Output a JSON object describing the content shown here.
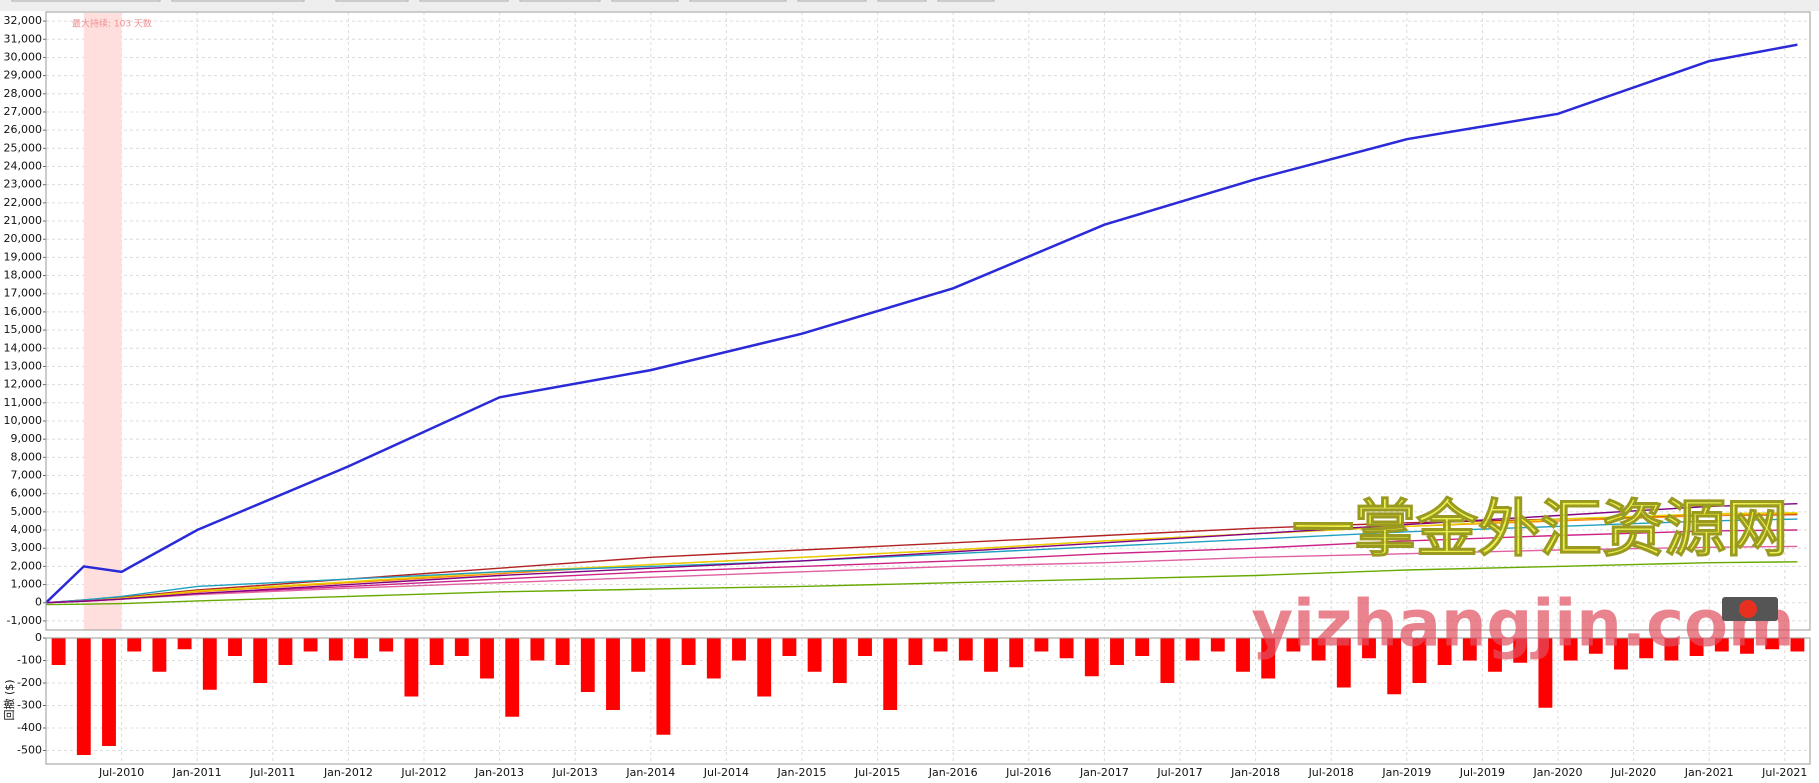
{
  "chart_data": [
    {
      "type": "line",
      "annotation": "最大持续: 103 天数",
      "shade": {
        "x": [
          "2010-04",
          "2010-07"
        ],
        "color": "#ffdede"
      },
      "x": [
        "2010-01",
        "2010-04",
        "2010-07",
        "2011-01",
        "2012-01",
        "2013-01",
        "2014-01",
        "2015-01",
        "2016-01",
        "2017-01",
        "2018-01",
        "2019-01",
        "2020-01",
        "2021-01",
        "2021-08"
      ],
      "series": [
        {
          "color": "#b22222",
          "values": [
            0,
            150,
            300,
            700,
            1300,
            1900,
            2500,
            2900,
            3300,
            3700,
            4100,
            4400,
            4600,
            4800,
            4850
          ]
        },
        {
          "color": "#ff8c00",
          "values": [
            0,
            100,
            250,
            600,
            1100,
            1600,
            2100,
            2500,
            2900,
            3400,
            3800,
            4200,
            4500,
            4800,
            4900
          ]
        },
        {
          "color": "#e8d000",
          "values": [
            0,
            100,
            250,
            650,
            1150,
            1700,
            2100,
            2500,
            2900,
            3400,
            3800,
            4200,
            4600,
            4900,
            4950
          ]
        },
        {
          "color": "#20a0c0",
          "values": [
            0,
            150,
            350,
            900,
            1300,
            1700,
            2000,
            2300,
            2700,
            3100,
            3500,
            3900,
            4200,
            4500,
            4600
          ]
        },
        {
          "color": "#cc2288",
          "values": [
            0,
            100,
            200,
            500,
            900,
            1300,
            1700,
            2000,
            2300,
            2700,
            3000,
            3400,
            3700,
            3950,
            4000
          ]
        },
        {
          "color": "#e060a0",
          "values": [
            0,
            80,
            200,
            450,
            800,
            1100,
            1400,
            1700,
            2000,
            2200,
            2500,
            2700,
            2900,
            3050,
            3100
          ]
        },
        {
          "color": "#800080",
          "values": [
            0,
            80,
            200,
            500,
            1000,
            1500,
            1900,
            2300,
            2800,
            3300,
            3800,
            4300,
            4800,
            5300,
            5450
          ]
        },
        {
          "color": "#66aa00",
          "values": [
            -100,
            -80,
            -50,
            100,
            350,
            600,
            750,
            900,
            1100,
            1300,
            1500,
            1800,
            2000,
            2200,
            2250
          ]
        },
        {
          "color": "#2a2ad8",
          "values": [
            0,
            2000,
            1700,
            4000,
            7500,
            11300,
            12800,
            14800,
            17300,
            20800,
            23300,
            25500,
            26900,
            29800,
            30700
          ]
        }
      ],
      "xlim": [
        "2010-01",
        "2021-09"
      ],
      "ylim": [
        -1500,
        32500
      ],
      "yticks": [
        {
          "value": -1000,
          "label": "-1,000"
        },
        0,
        {
          "value": 1000,
          "label": "1,000"
        },
        {
          "value": 2000,
          "label": "2,000"
        },
        {
          "value": 3000,
          "label": "3,000"
        },
        {
          "value": 4000,
          "label": "4,000"
        },
        {
          "value": 5000,
          "label": "5,000"
        },
        {
          "value": 6000,
          "label": "6,000"
        },
        {
          "value": 7000,
          "label": "7,000"
        },
        {
          "value": 8000,
          "label": "8,000"
        },
        {
          "value": 9000,
          "label": "9,000"
        },
        {
          "value": 10000,
          "label": "10,000"
        },
        {
          "value": 11000,
          "label": "11,000"
        },
        {
          "value": 12000,
          "label": "12,000"
        },
        {
          "value": 13000,
          "label": "13,000"
        },
        {
          "value": 14000,
          "label": "14,000"
        },
        {
          "value": 15000,
          "label": "15,000"
        },
        {
          "value": 16000,
          "label": "16,000"
        },
        {
          "value": 17000,
          "label": "17,000"
        },
        {
          "value": 18000,
          "label": "18,000"
        },
        {
          "value": 19000,
          "label": "19,000"
        },
        {
          "value": 20000,
          "label": "20,000"
        },
        {
          "value": 21000,
          "label": "21,000"
        },
        {
          "value": 22000,
          "label": "22,000"
        },
        {
          "value": 23000,
          "label": "23,000"
        },
        {
          "value": 24000,
          "label": "24,000"
        },
        {
          "value": 25000,
          "label": "25,000"
        },
        {
          "value": 26000,
          "label": "26,000"
        },
        {
          "value": 27000,
          "label": "27,000"
        },
        {
          "value": 28000,
          "label": "28,000"
        },
        {
          "value": 29000,
          "label": "29,000"
        },
        {
          "value": 30000,
          "label": "30,000"
        },
        {
          "value": 31000,
          "label": "31,000"
        },
        {
          "value": 32000,
          "label": "32,000"
        }
      ],
      "grid": true
    },
    {
      "type": "bar",
      "ylabel": "回撤 ($)",
      "color": "#ff0000",
      "x": [
        "2010-02",
        "2010-04",
        "2010-06",
        "2010-08",
        "2010-10",
        "2010-12",
        "2011-02",
        "2011-04",
        "2011-06",
        "2011-08",
        "2011-10",
        "2011-12",
        "2012-02",
        "2012-04",
        "2012-06",
        "2012-08",
        "2012-10",
        "2012-12",
        "2013-02",
        "2013-04",
        "2013-06",
        "2013-08",
        "2013-10",
        "2013-12",
        "2014-02",
        "2014-04",
        "2014-06",
        "2014-08",
        "2014-10",
        "2014-12",
        "2015-02",
        "2015-04",
        "2015-06",
        "2015-08",
        "2015-10",
        "2015-12",
        "2016-02",
        "2016-04",
        "2016-06",
        "2016-08",
        "2016-10",
        "2016-12",
        "2017-02",
        "2017-04",
        "2017-06",
        "2017-08",
        "2017-10",
        "2017-12",
        "2018-02",
        "2018-04",
        "2018-06",
        "2018-08",
        "2018-10",
        "2018-12",
        "2019-02",
        "2019-04",
        "2019-06",
        "2019-08",
        "2019-10",
        "2019-12",
        "2020-02",
        "2020-04",
        "2020-06",
        "2020-08",
        "2020-10",
        "2020-12",
        "2021-02",
        "2021-04",
        "2021-06",
        "2021-08"
      ],
      "values": [
        -120,
        -520,
        -480,
        -60,
        -150,
        -50,
        -230,
        -80,
        -200,
        -120,
        -60,
        -100,
        -90,
        -60,
        -260,
        -120,
        -80,
        -180,
        -350,
        -100,
        -120,
        -240,
        -320,
        -150,
        -430,
        -120,
        -180,
        -100,
        -260,
        -80,
        -150,
        -200,
        -80,
        -320,
        -120,
        -60,
        -100,
        -150,
        -130,
        -60,
        -90,
        -170,
        -120,
        -80,
        -200,
        -100,
        -60,
        -150,
        -180,
        -60,
        -100,
        -220,
        -90,
        -250,
        -200,
        -120,
        -100,
        -150,
        -110,
        -310,
        -100,
        -70,
        -140,
        -90,
        -100,
        -80,
        -60,
        -70,
        -50,
        -60
      ],
      "xlim": [
        "2010-01",
        "2021-09"
      ],
      "ylim": [
        -560,
        0
      ],
      "yticks": [
        0,
        -100,
        -200,
        -300,
        -400,
        -500
      ],
      "xticks": [
        {
          "value": "2010-07",
          "label": "Jul-2010"
        },
        {
          "value": "2011-01",
          "label": "Jan-2011"
        },
        {
          "value": "2011-07",
          "label": "Jul-2011"
        },
        {
          "value": "2012-01",
          "label": "Jan-2012"
        },
        {
          "value": "2012-07",
          "label": "Jul-2012"
        },
        {
          "value": "2013-01",
          "label": "Jan-2013"
        },
        {
          "value": "2013-07",
          "label": "Jul-2013"
        },
        {
          "value": "2014-01",
          "label": "Jan-2014"
        },
        {
          "value": "2014-07",
          "label": "Jul-2014"
        },
        {
          "value": "2015-01",
          "label": "Jan-2015"
        },
        {
          "value": "2015-07",
          "label": "Jul-2015"
        },
        {
          "value": "2016-01",
          "label": "Jan-2016"
        },
        {
          "value": "2016-07",
          "label": "Jul-2016"
        },
        {
          "value": "2017-01",
          "label": "Jan-2017"
        },
        {
          "value": "2017-07",
          "label": "Jul-2017"
        },
        {
          "value": "2018-01",
          "label": "Jan-2018"
        },
        {
          "value": "2018-07",
          "label": "Jul-2018"
        },
        {
          "value": "2019-01",
          "label": "Jan-2019"
        },
        {
          "value": "2019-07",
          "label": "Jul-2019"
        },
        {
          "value": "2020-01",
          "label": "Jan-2020"
        },
        {
          "value": "2020-07",
          "label": "Jul-2020"
        },
        {
          "value": "2021-01",
          "label": "Jan-2021"
        },
        {
          "value": "2021-07",
          "label": "Jul-2021"
        }
      ],
      "grid": true
    }
  ],
  "watermark": {
    "line1": "一掌金外汇资源网",
    "line2": "yizhangjin.com"
  }
}
